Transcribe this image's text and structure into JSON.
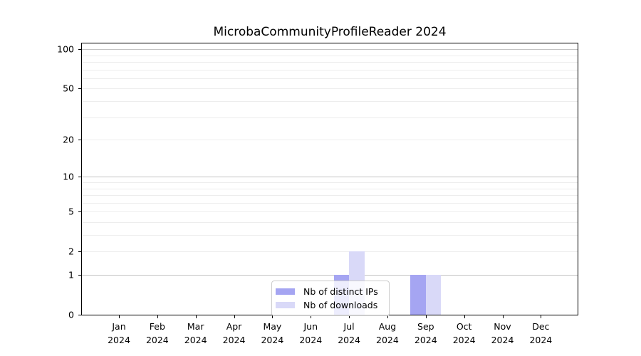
{
  "title": "MicrobaCommunityProfileReader 2024",
  "chart_data": {
    "type": "bar",
    "title": "MicrobaCommunityProfileReader 2024",
    "categories": [
      "Jan",
      "Feb",
      "Mar",
      "Apr",
      "May",
      "Jun",
      "Jul",
      "Aug",
      "Sep",
      "Oct",
      "Nov",
      "Dec"
    ],
    "x_year_label": "2024",
    "series": [
      {
        "name": "Nb of distinct IPs",
        "color": "#a5a5f2",
        "values": [
          0,
          0,
          0,
          0,
          0,
          0,
          1,
          0,
          1,
          0,
          0,
          0
        ]
      },
      {
        "name": "Nb of downloads",
        "color": "#d9d9f8",
        "values": [
          0,
          0,
          0,
          0,
          0,
          0,
          2,
          0,
          1,
          0,
          0,
          0
        ]
      }
    ],
    "xlabel": "",
    "ylabel": "",
    "y_scale": "log1p",
    "ylim": [
      0,
      114
    ],
    "y_ticks": [
      0,
      1,
      2,
      5,
      10,
      20,
      50,
      100
    ],
    "y_major_gridlines": [
      1,
      10,
      100
    ],
    "y_minor_gridlines": [
      2,
      3,
      4,
      5,
      6,
      7,
      8,
      9,
      20,
      30,
      40,
      50,
      60,
      70,
      80,
      90
    ],
    "grid": true,
    "legend_position": "lower center",
    "colors": {
      "major_grid": "#c3c3c3",
      "minor_grid": "#ededed",
      "axis": "#000000",
      "text": "#000000",
      "legend_border": "#cccccc"
    }
  }
}
